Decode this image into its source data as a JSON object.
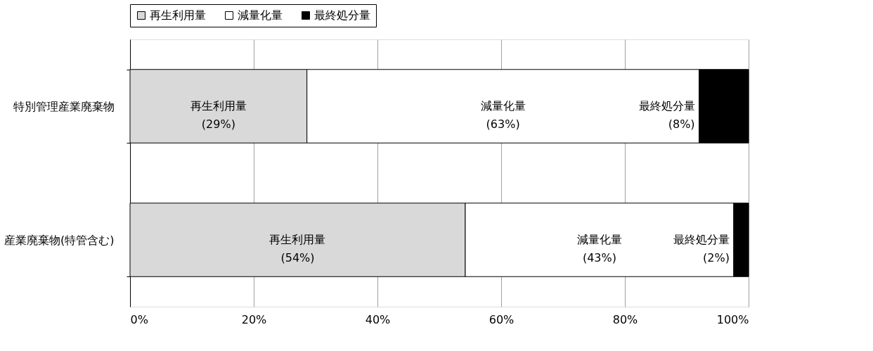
{
  "chart_data": {
    "type": "bar",
    "orientation": "horizontal",
    "stacked": true,
    "categories": [
      "特別管理産業廃棄物",
      "産業廃棄物(特管含む)"
    ],
    "series": [
      {
        "name": "再生利用量",
        "color": "#d9d9d9",
        "values": [
          28.6,
          54.2
        ],
        "value_labels": [
          "再生利用量\n(29%)",
          "再生利用量\n(54%)"
        ]
      },
      {
        "name": "減量化量",
        "color": "#ffffff",
        "values": [
          63.4,
          43.4
        ],
        "value_labels": [
          "減量化量\n(63%)",
          "減量化量\n(43%)"
        ]
      },
      {
        "name": "最終処分量",
        "color": "#000000",
        "values": [
          8.0,
          2.4
        ],
        "value_labels": [
          "最終処分量\n(8%)",
          "最終処分量\n(2%)"
        ]
      }
    ],
    "xlim": [
      0,
      100
    ],
    "xticks": [
      {
        "value": 0,
        "label": "0%"
      },
      {
        "value": 20,
        "label": "20%"
      },
      {
        "value": 40,
        "label": "40%"
      },
      {
        "value": 60,
        "label": "60%"
      },
      {
        "value": 80,
        "label": "80%"
      },
      {
        "value": 100,
        "label": "100%"
      }
    ],
    "grid": "x",
    "legend": "top"
  }
}
